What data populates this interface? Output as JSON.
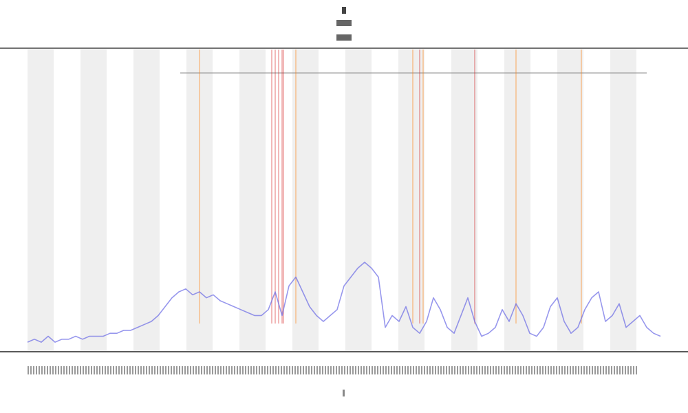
{
  "chart_data": {
    "type": "line",
    "xlim": [
      0,
      92
    ],
    "ylim": [
      0,
      100
    ],
    "series": [
      {
        "color": "#6b6be6",
        "x": [
          0,
          1,
          2,
          3,
          4,
          5,
          6,
          7,
          8,
          9,
          10,
          11,
          12,
          13,
          14,
          15,
          16,
          17,
          18,
          19,
          20,
          21,
          22,
          23,
          24,
          25,
          26,
          27,
          28,
          29,
          30,
          31,
          32,
          33,
          34,
          35,
          36,
          37,
          38,
          39,
          40,
          41,
          42,
          43,
          44,
          45,
          46,
          47,
          48,
          49,
          50,
          51,
          52,
          53,
          54,
          55,
          56,
          57,
          58,
          59,
          60,
          61,
          62,
          63,
          64,
          65,
          66,
          67,
          68,
          69,
          70,
          71,
          72,
          73,
          74,
          75,
          76,
          77,
          78,
          79,
          80,
          81,
          82,
          83,
          84,
          85,
          86,
          87,
          88,
          89,
          90,
          91,
          92
        ],
        "values": [
          3,
          4,
          3,
          5,
          3,
          4,
          4,
          5,
          4,
          5,
          5,
          5,
          6,
          6,
          7,
          7,
          8,
          9,
          10,
          12,
          15,
          18,
          20,
          21,
          19,
          20,
          18,
          19,
          17,
          16,
          15,
          14,
          13,
          12,
          12,
          14,
          20,
          12,
          22,
          25,
          20,
          15,
          12,
          10,
          12,
          14,
          22,
          25,
          28,
          30,
          28,
          25,
          8,
          12,
          10,
          15,
          8,
          6,
          10,
          18,
          14,
          8,
          6,
          12,
          18,
          10,
          5,
          6,
          8,
          14,
          10,
          16,
          12,
          6,
          5,
          8,
          15,
          18,
          10,
          6,
          8,
          14,
          18,
          20,
          10,
          12,
          16,
          8,
          10,
          12,
          8,
          6,
          5
        ]
      }
    ],
    "events": [
      {
        "color": "#d62728",
        "x": [
          35.5,
          36,
          36.5,
          37,
          37.2,
          57,
          65
        ]
      },
      {
        "color": "#ff7f0e",
        "x": [
          25,
          39,
          56,
          57.5,
          71,
          80.5
        ]
      }
    ]
  }
}
